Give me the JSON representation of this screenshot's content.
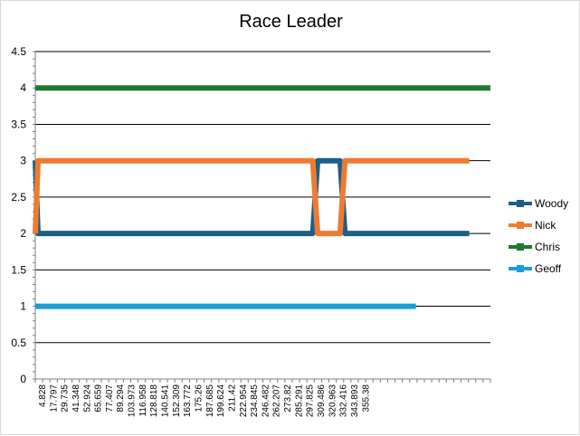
{
  "chart_data": {
    "type": "line",
    "title": "Race Leader",
    "ylim": [
      0,
      4.5
    ],
    "yticks": [
      "0",
      "0.5",
      "1",
      "1.5",
      "2",
      "2.5",
      "3",
      "3.5",
      "4",
      "4.5"
    ],
    "xlim": [
      4.828,
      371
    ],
    "xtick_labels": [
      "4.828",
      "17.797",
      "29.735",
      "41.348",
      "52.924",
      "65.659",
      "77.407",
      "89.294",
      "103.973",
      "116.958",
      "128.818",
      "140.541",
      "152.309",
      "163.772",
      "175.26",
      "187.685",
      "199.624",
      "211.42",
      "222.954",
      "234.845",
      "246.482",
      "262.207",
      "273.82",
      "285.291",
      "297.825",
      "309.486",
      "320.963",
      "332.416",
      "343.893",
      "355.38"
    ],
    "grid": true,
    "legend_position": "right",
    "series": [
      {
        "name": "Woody",
        "color": "#1f5f86",
        "points": [
          [
            4.828,
            3
          ],
          [
            7,
            2
          ],
          [
            228,
            2
          ],
          [
            232,
            3
          ],
          [
            250,
            3
          ],
          [
            254,
            2
          ],
          [
            354,
            2
          ]
        ]
      },
      {
        "name": "Nick",
        "color": "#ee7b30",
        "points": [
          [
            4.828,
            2
          ],
          [
            7,
            3
          ],
          [
            228,
            3
          ],
          [
            232,
            2
          ],
          [
            250,
            2
          ],
          [
            254,
            3
          ],
          [
            354,
            3
          ]
        ]
      },
      {
        "name": "Chris",
        "color": "#1e7a31",
        "points": [
          [
            4.828,
            4
          ],
          [
            371,
            4
          ]
        ]
      },
      {
        "name": "Geoff",
        "color": "#1a9ed9",
        "points": [
          [
            4.828,
            1
          ],
          [
            311,
            1
          ]
        ]
      }
    ]
  }
}
